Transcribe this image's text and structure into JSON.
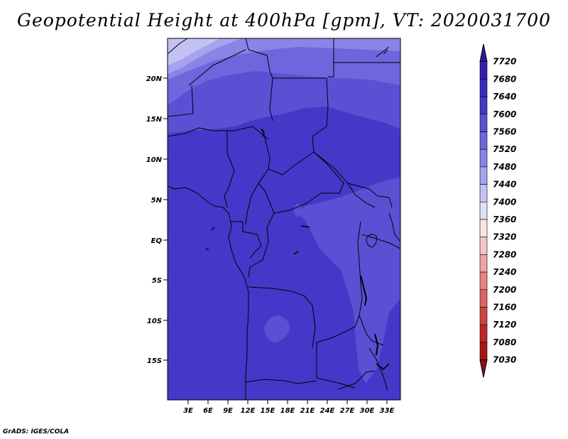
{
  "title": "Geopotential Height at 400hPa [gpm], VT: 2020031700",
  "credit": "GrADS: IGES/COLA",
  "map": {
    "lat_labels": [
      "20N",
      "15N",
      "10N",
      "5N",
      "EQ",
      "5S",
      "10S",
      "15S"
    ],
    "lon_labels": [
      "3E",
      "6E",
      "9E",
      "12E",
      "15E",
      "18E",
      "21E",
      "24E",
      "27E",
      "30E",
      "33E"
    ]
  },
  "colorbar": {
    "levels": [
      "7720",
      "7680",
      "7640",
      "7600",
      "7560",
      "7520",
      "7480",
      "7440",
      "7400",
      "7360",
      "7320",
      "7280",
      "7240",
      "7200",
      "7160",
      "7120",
      "7080",
      "7030"
    ],
    "colors": [
      "#2a1a9a",
      "#3420b0",
      "#3b2ac0",
      "#4438c8",
      "#5a50d4",
      "#6e66dc",
      "#8a84e6",
      "#a6a2ee",
      "#c4c2f4",
      "#e0e0fa",
      "#fbe4e4",
      "#f6c4c4",
      "#eea4a4",
      "#e68484",
      "#dc6464",
      "#d04444",
      "#c02828",
      "#a81818",
      "#901010"
    ]
  },
  "colors": {
    "c7680": "#3b2ac0",
    "c7640": "#4438c8",
    "c7600": "#5a50d4",
    "c7560": "#6e66dc",
    "c7520": "#8a84e6",
    "c7480": "#a6a2ee",
    "c7440": "#c4c2f4"
  }
}
